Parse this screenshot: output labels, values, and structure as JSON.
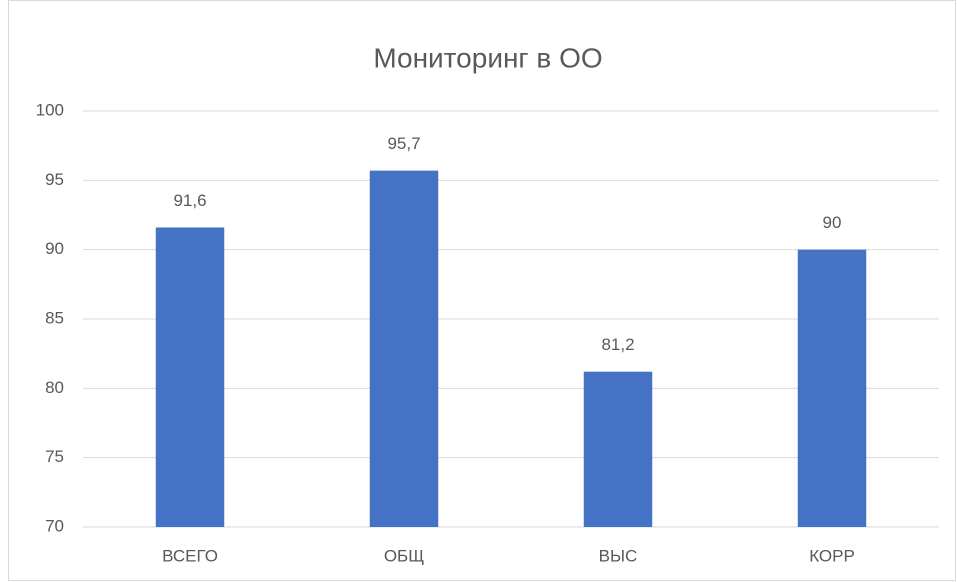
{
  "chart_data": {
    "type": "bar",
    "title": "Мониторинг в ОО",
    "categories": [
      "ВСЕГО",
      "ОБЩ",
      "ВЫС",
      "КОРР"
    ],
    "values": [
      91.6,
      95.7,
      81.2,
      90
    ],
    "value_labels": [
      "91,6",
      "95,7",
      "81,2",
      "90"
    ],
    "color": "#4472c4",
    "ylim": [
      70,
      100
    ],
    "yticks": [
      70,
      75,
      80,
      85,
      90,
      95,
      100
    ],
    "grid": true
  }
}
